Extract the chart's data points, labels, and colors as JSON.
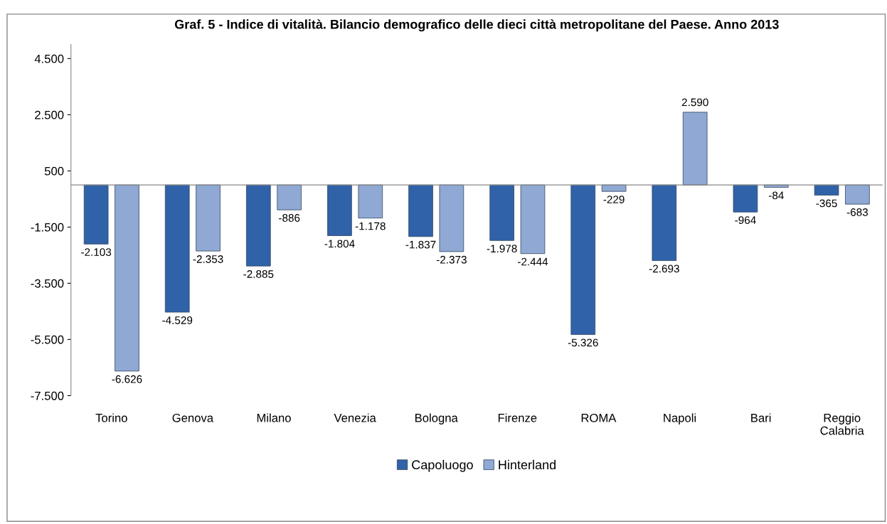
{
  "chart_data": {
    "type": "bar",
    "title": "Graf. 5 - Indice di vitalità. Bilancio demografico delle dieci città metropolitane del Paese. Anno 2013",
    "categories": [
      "Torino",
      "Genova",
      "Milano",
      "Venezia",
      "Bologna",
      "Firenze",
      "ROMA",
      "Napoli",
      "Bari",
      "Reggio\nCalabria"
    ],
    "series": [
      {
        "name": "Capoluogo",
        "color": "#2f62a8",
        "values": [
          -2103,
          -4529,
          -2885,
          -1804,
          -1837,
          -1978,
          -5326,
          -2693,
          -964,
          -365
        ],
        "value_labels": [
          "-2.103",
          "-4.529",
          "-2.885",
          "-1.804",
          "-1.837",
          "-1.978",
          "-5.326",
          "-2.693",
          "-964",
          "-365"
        ]
      },
      {
        "name": "Hinterland",
        "color": "#8fa9d4",
        "values": [
          -6626,
          -2353,
          -886,
          -1178,
          -2373,
          -2444,
          -229,
          2590,
          -84,
          -683
        ],
        "value_labels": [
          "-6.626",
          "-2.353",
          "-886",
          "-1.178",
          "-2.373",
          "-2.444",
          "-229",
          "2.590",
          "-84",
          "-683"
        ]
      }
    ],
    "ylim": [
      -7500,
      5000
    ],
    "yticks": [
      {
        "value": -7500,
        "label": "-7.500"
      },
      {
        "value": -5500,
        "label": "-5.500"
      },
      {
        "value": -3500,
        "label": "-3.500"
      },
      {
        "value": -1500,
        "label": "-1.500"
      },
      {
        "value": 500,
        "label": "500"
      },
      {
        "value": 2500,
        "label": "2.500"
      },
      {
        "value": 4500,
        "label": "4.500"
      }
    ],
    "grid": false,
    "legend": "bottom"
  }
}
